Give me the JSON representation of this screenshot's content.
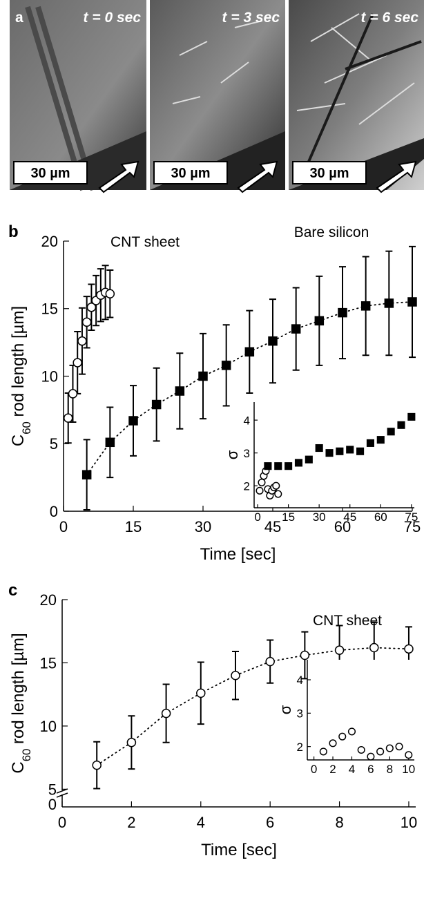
{
  "panel_a": {
    "label": "a",
    "frames": [
      {
        "time": "t = 0 sec",
        "scale_bar": "30 µm"
      },
      {
        "time": "t = 3 sec",
        "scale_bar": "30 µm"
      },
      {
        "time": "t = 6 sec",
        "scale_bar": "30 µm"
      }
    ]
  },
  "chart_data": [
    {
      "type": "scatter",
      "panel_label": "b",
      "xlabel": "Time [sec]",
      "ylabel": "C60 rod length [µm]",
      "xlim": [
        0,
        75
      ],
      "xticks": [
        0,
        15,
        30,
        45,
        60,
        75
      ],
      "ylim": [
        0,
        20
      ],
      "yticks": [
        0,
        5,
        10,
        15,
        20
      ],
      "series": [
        {
          "name": "CNT sheet",
          "marker": "circle",
          "color": "#000000",
          "fill": "#ffffff",
          "fit_line": false,
          "x": [
            1,
            2,
            3,
            4,
            5,
            6,
            7,
            8,
            9,
            10
          ],
          "values": [
            6.9,
            8.7,
            11.0,
            12.6,
            14.0,
            15.1,
            15.6,
            16.0,
            16.2,
            16.1
          ],
          "errors": [
            1.85,
            2.1,
            2.3,
            2.45,
            1.9,
            1.7,
            1.85,
            1.95,
            2.0,
            1.75
          ]
        },
        {
          "name": "Bare silicon",
          "marker": "square",
          "color": "#000000",
          "fill": "#000000",
          "fit_line": true,
          "x": [
            5,
            10,
            15,
            20,
            25,
            30,
            35,
            40,
            45,
            50,
            55,
            60,
            65,
            70,
            75
          ],
          "values": [
            2.7,
            5.1,
            6.7,
            7.9,
            8.9,
            10.0,
            10.8,
            11.8,
            12.6,
            13.5,
            14.1,
            14.7,
            15.2,
            15.4,
            15.5
          ],
          "errors": [
            2.6,
            2.6,
            2.6,
            2.7,
            2.8,
            3.15,
            3.0,
            3.05,
            3.1,
            3.05,
            3.3,
            3.4,
            3.65,
            3.85,
            4.1
          ]
        }
      ]
    },
    {
      "type": "scatter",
      "ylabel": "σ",
      "xlim": [
        -1.7,
        76.4
      ],
      "xticks": [
        0,
        15,
        30,
        45,
        60,
        75
      ],
      "ylim": [
        1.33,
        4.55
      ],
      "yticks": [
        2,
        3,
        4
      ],
      "series": [
        {
          "marker": "circle",
          "color": "#000000",
          "fill": "#ffffff",
          "x": [
            1,
            2,
            3,
            4,
            5,
            6,
            7,
            8,
            9,
            10
          ],
          "values": [
            1.85,
            2.1,
            2.3,
            2.45,
            1.9,
            1.7,
            1.85,
            1.95,
            2.0,
            1.75
          ]
        },
        {
          "marker": "square",
          "color": "#000000",
          "fill": "#000000",
          "x": [
            5,
            10,
            15,
            20,
            25,
            30,
            35,
            40,
            45,
            50,
            55,
            60,
            65,
            70,
            75
          ],
          "values": [
            2.6,
            2.6,
            2.6,
            2.7,
            2.8,
            3.15,
            3.0,
            3.05,
            3.1,
            3.05,
            3.3,
            3.4,
            3.65,
            3.85,
            4.1
          ]
        }
      ]
    },
    {
      "type": "scatter",
      "panel_label": "c",
      "xlabel": "Time [sec]",
      "ylabel": "C60 rod length [µm]",
      "y_break": true,
      "xlim": [
        0,
        10.2
      ],
      "xticks": [
        0,
        2,
        4,
        6,
        8,
        10
      ],
      "ylim": [
        3.6,
        20
      ],
      "yticks": [
        0,
        5,
        10,
        15,
        20
      ],
      "series": [
        {
          "name": "CNT sheet",
          "marker": "circle",
          "color": "#000000",
          "fill": "#ffffff",
          "fit_line": true,
          "x": [
            1,
            2,
            3,
            4,
            5,
            6,
            7,
            8,
            9,
            10
          ],
          "values": [
            6.9,
            8.7,
            11.0,
            12.6,
            14.0,
            15.1,
            15.6,
            16.0,
            16.2,
            16.1
          ],
          "errors": [
            1.85,
            2.1,
            2.3,
            2.45,
            1.9,
            1.7,
            1.85,
            1.95,
            2.0,
            1.75
          ]
        }
      ]
    },
    {
      "type": "scatter",
      "ylabel": "σ",
      "xlim": [
        -0.7,
        10.6
      ],
      "xticks": [
        0,
        2,
        4,
        6,
        8,
        10
      ],
      "ylim": [
        1.6,
        4.6
      ],
      "yticks": [
        2,
        3,
        4
      ],
      "series": [
        {
          "marker": "circle",
          "color": "#000000",
          "fill": "#ffffff",
          "x": [
            1,
            2,
            3,
            4,
            5,
            6,
            7,
            8,
            9,
            10
          ],
          "values": [
            1.85,
            2.1,
            2.3,
            2.45,
            1.9,
            1.7,
            1.85,
            1.95,
            2.0,
            1.75
          ]
        }
      ]
    }
  ]
}
